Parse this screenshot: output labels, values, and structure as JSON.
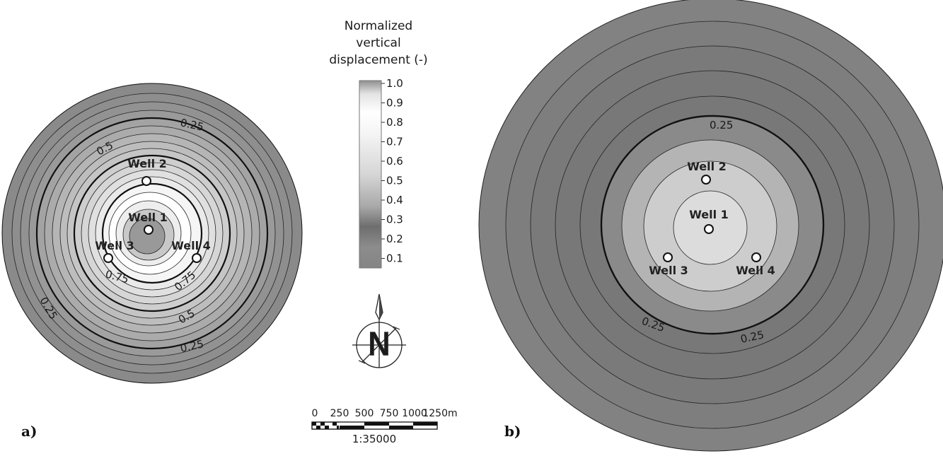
{
  "panels": {
    "a": {
      "label": "a)",
      "wells": [
        {
          "name": "Well 1"
        },
        {
          "name": "Well 2"
        },
        {
          "name": "Well 3"
        },
        {
          "name": "Well 4"
        }
      ],
      "contour_labels": [
        "0.25",
        "0.5",
        "0.75",
        "0.75",
        "0.25",
        "0.5",
        "0.25"
      ]
    },
    "b": {
      "label": "b)",
      "wells": [
        {
          "name": "Well 1"
        },
        {
          "name": "Well 2"
        },
        {
          "name": "Well 3"
        },
        {
          "name": "Well 4"
        }
      ],
      "contour_labels": [
        "0.25",
        "0.25",
        "0.25"
      ]
    }
  },
  "legend": {
    "title_lines": [
      "Normalized",
      "vertical",
      "displacement (-)"
    ],
    "ticks": [
      "1.0",
      "0.9",
      "0.8",
      "0.7",
      "0.6",
      "0.5",
      "0.4",
      "0.3",
      "0.2",
      "0.1"
    ]
  },
  "north_arrow": {
    "letter": "N"
  },
  "scale_bar": {
    "tick_labels": [
      "0",
      "250",
      "500",
      "750",
      "1000",
      "1250m"
    ],
    "ratio": "1:35000"
  },
  "colors": {
    "band_dark": "#7d7d7d",
    "band_light": "#ffffff",
    "contour_line": "#111111"
  }
}
